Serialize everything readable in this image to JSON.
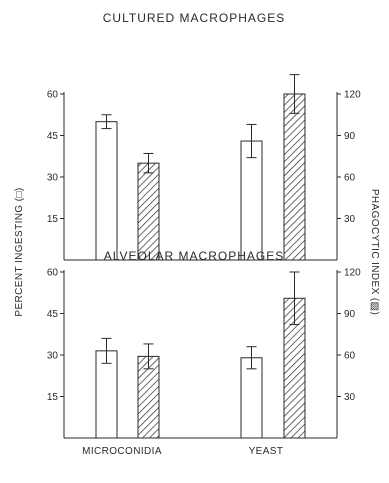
{
  "figure": {
    "left_axis_label": "PERCENT INGESTING (□)",
    "right_axis_label": "PHAGOCYTIC INDEX (▨)",
    "colors": {
      "ink": "#2a2a2a",
      "bar_fill": "#ffffff",
      "hatch": "#2a2a2a"
    }
  },
  "chart_data": [
    {
      "type": "bar",
      "title": "CULTURED MACROPHAGES",
      "categories": [
        "MICROCONIDIA",
        "YEAST"
      ],
      "categories_shown": false,
      "left_axis": {
        "ylim": [
          0,
          60
        ],
        "ticks": [
          15,
          30,
          45,
          60
        ]
      },
      "right_axis": {
        "ylim": [
          0,
          120
        ],
        "ticks": [
          30,
          60,
          90,
          120
        ]
      },
      "series": [
        {
          "key": "percent_ingesting",
          "axis": "left",
          "pattern": "open",
          "values": [
            50,
            43
          ],
          "errors": [
            2.5,
            6
          ]
        },
        {
          "key": "phagocytic_index",
          "axis": "right",
          "pattern": "hatched",
          "values": [
            70,
            120
          ],
          "errors": [
            7,
            14
          ]
        }
      ]
    },
    {
      "type": "bar",
      "title": "ALVEOLAR MACROPHAGES",
      "categories": [
        "MICROCONIDIA",
        "YEAST"
      ],
      "categories_shown": true,
      "left_axis": {
        "ylim": [
          0,
          60
        ],
        "ticks": [
          15,
          30,
          45,
          60
        ]
      },
      "right_axis": {
        "ylim": [
          0,
          120
        ],
        "ticks": [
          30,
          60,
          90,
          120
        ]
      },
      "series": [
        {
          "key": "percent_ingesting",
          "axis": "left",
          "pattern": "open",
          "values": [
            31.5,
            29
          ],
          "errors": [
            4.5,
            4
          ]
        },
        {
          "key": "phagocytic_index",
          "axis": "right",
          "pattern": "hatched",
          "values": [
            59,
            101
          ],
          "errors": [
            9,
            19
          ]
        }
      ]
    }
  ]
}
